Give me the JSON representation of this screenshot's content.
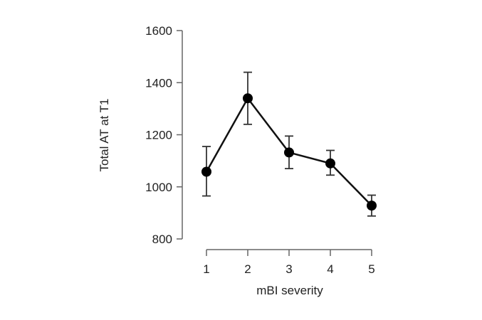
{
  "chart_data": {
    "type": "line",
    "title": "",
    "xlabel": "mBI severity",
    "ylabel": "Total AT at T1",
    "categories": [
      "1",
      "2",
      "3",
      "4",
      "5"
    ],
    "series": [
      {
        "name": "Total AT at T1",
        "values": [
          1058,
          1340,
          1132,
          1090,
          928
        ],
        "error_lower": [
          965,
          1240,
          1070,
          1045,
          888
        ],
        "error_upper": [
          1155,
          1440,
          1195,
          1140,
          968
        ]
      }
    ],
    "ylim": [
      800,
      1600
    ],
    "yticks": [
      800,
      1000,
      1200,
      1400,
      1600
    ],
    "grid": false,
    "legend": "none",
    "colors": {
      "line": "#111111",
      "marker": "#000000",
      "axis": "#666666"
    }
  }
}
